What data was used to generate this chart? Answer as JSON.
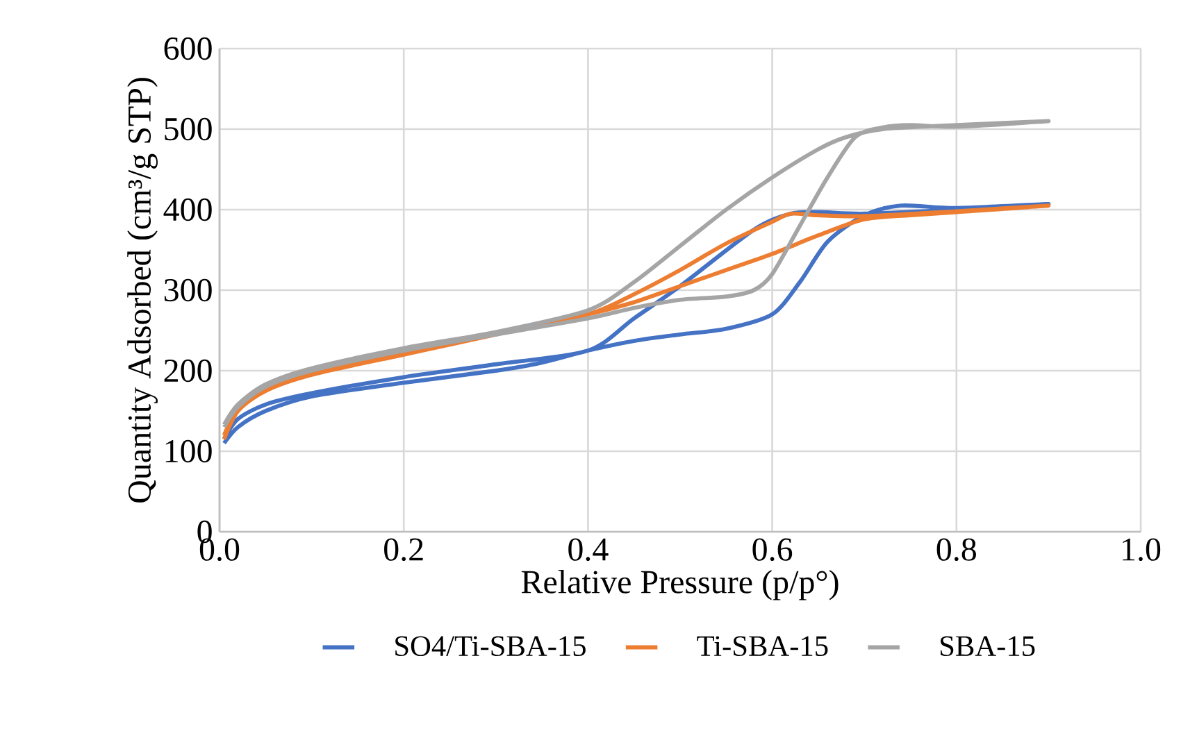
{
  "chart_data": {
    "type": "line",
    "xlabel": "Relative Pressure (p/p°)",
    "ylabel": "Quantity Adsorbed (cm³/g STP)",
    "xlim": [
      0,
      1
    ],
    "xticks": [
      {
        "value": 0,
        "label": "0.0"
      },
      0.2,
      0.4,
      0.6,
      0.8,
      {
        "value": 1,
        "label": "1.0"
      }
    ],
    "ylim": [
      0,
      600
    ],
    "yticks": [
      0,
      100,
      200,
      300,
      400,
      500,
      600
    ],
    "grid": true,
    "legend": "bottom",
    "marker": "none",
    "line_style": "solid",
    "series": [
      {
        "name": "SO4/Ti-SBA-15",
        "color": "#4472c4",
        "x": [
          0.005,
          0.02,
          0.05,
          0.1,
          0.2,
          0.3,
          0.35,
          0.4,
          0.45,
          0.5,
          0.55,
          0.6,
          0.63,
          0.66,
          0.7,
          0.74,
          0.8,
          0.9,
          0.8,
          0.7,
          0.65,
          0.62,
          0.58,
          0.5,
          0.45,
          0.4,
          0.3,
          0.2,
          0.1,
          0.05,
          0.02,
          0.005
        ],
        "values": [
          110,
          130,
          150,
          168,
          185,
          200,
          210,
          225,
          237,
          245,
          252,
          270,
          310,
          360,
          393,
          405,
          402,
          407,
          400,
          395,
          397,
          395,
          375,
          305,
          265,
          225,
          208,
          192,
          172,
          158,
          140,
          115
        ]
      },
      {
        "name": "Ti-SBA-15",
        "color": "#ed7d31",
        "x": [
          0.005,
          0.02,
          0.05,
          0.1,
          0.2,
          0.3,
          0.4,
          0.45,
          0.5,
          0.55,
          0.6,
          0.65,
          0.7,
          0.75,
          0.8,
          0.9,
          0.8,
          0.7,
          0.65,
          0.62,
          0.6,
          0.55,
          0.5,
          0.45,
          0.4,
          0.3,
          0.2,
          0.1,
          0.05,
          0.02,
          0.005
        ],
        "values": [
          115,
          150,
          175,
          195,
          220,
          245,
          270,
          285,
          305,
          325,
          345,
          368,
          388,
          393,
          397,
          405,
          398,
          392,
          393,
          395,
          385,
          358,
          325,
          295,
          270,
          246,
          222,
          197,
          177,
          152,
          120
        ]
      },
      {
        "name": "SBA-15",
        "color": "#a5a5a5",
        "x": [
          0.005,
          0.02,
          0.05,
          0.1,
          0.2,
          0.3,
          0.4,
          0.45,
          0.5,
          0.55,
          0.58,
          0.6,
          0.63,
          0.66,
          0.69,
          0.72,
          0.75,
          0.8,
          0.9,
          0.8,
          0.72,
          0.68,
          0.65,
          0.6,
          0.55,
          0.5,
          0.45,
          0.4,
          0.3,
          0.2,
          0.1,
          0.05,
          0.02,
          0.005
        ],
        "values": [
          130,
          155,
          180,
          200,
          225,
          245,
          265,
          278,
          288,
          292,
          300,
          320,
          380,
          440,
          490,
          502,
          505,
          503,
          510,
          505,
          500,
          490,
          475,
          440,
          400,
          355,
          310,
          275,
          248,
          228,
          203,
          183,
          158,
          133
        ]
      }
    ]
  }
}
